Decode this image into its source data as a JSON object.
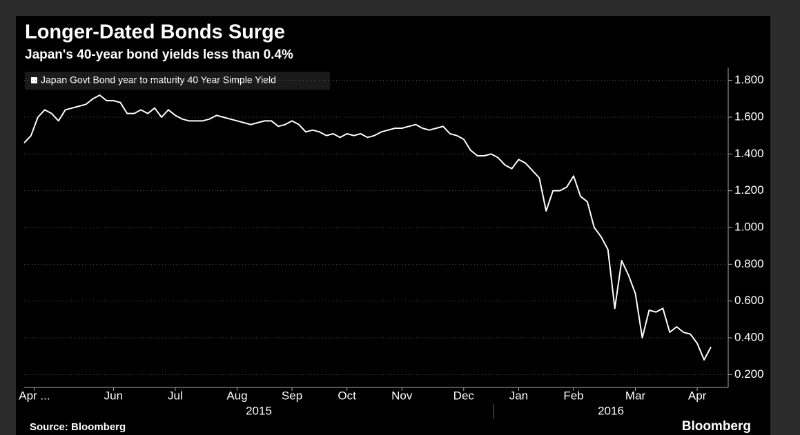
{
  "chart_data": {
    "type": "line",
    "title": "Longer-Dated Bonds Surge",
    "subtitle": "Japan's 40-year bond yields less than 0.4%",
    "source": "Source: Bloomberg",
    "brand": "Bloomberg",
    "years": [
      "2015",
      "2016"
    ],
    "xlim": [
      0,
      100
    ],
    "xticks": [
      {
        "value": 1.5,
        "label": "Apr ..."
      },
      {
        "value": 13,
        "label": "Jun"
      },
      {
        "value": 22,
        "label": "Jul"
      },
      {
        "value": 31,
        "label": "Aug"
      },
      {
        "value": 39,
        "label": "Sep"
      },
      {
        "value": 47,
        "label": "Oct"
      },
      {
        "value": 55,
        "label": "Nov"
      },
      {
        "value": 64,
        "label": "Dec"
      },
      {
        "value": 72,
        "label": "Jan"
      },
      {
        "value": 80,
        "label": "Feb"
      },
      {
        "value": 89,
        "label": "Mar"
      },
      {
        "value": 98,
        "label": "Apr"
      }
    ],
    "ylim": [
      0.13,
      1.87
    ],
    "yticks": [
      {
        "value": 0.2,
        "label": "0.200"
      },
      {
        "value": 0.4,
        "label": "0.400"
      },
      {
        "value": 0.6,
        "label": "0.600"
      },
      {
        "value": 0.8,
        "label": "0.800"
      },
      {
        "value": 1.0,
        "label": "1.000"
      },
      {
        "value": 1.2,
        "label": "1.200"
      },
      {
        "value": 1.4,
        "label": "1.400"
      },
      {
        "value": 1.6,
        "label": "1.600"
      },
      {
        "value": 1.8,
        "label": "1.800"
      }
    ],
    "series": [
      {
        "name": "Japan Govt Bond year to maturity 40 Year Simple Yield",
        "color": "#ffffff",
        "values": [
          1.46,
          1.5,
          1.6,
          1.64,
          1.62,
          1.58,
          1.64,
          1.65,
          1.66,
          1.67,
          1.7,
          1.72,
          1.69,
          1.69,
          1.68,
          1.62,
          1.62,
          1.64,
          1.62,
          1.65,
          1.6,
          1.64,
          1.61,
          1.59,
          1.58,
          1.58,
          1.58,
          1.59,
          1.61,
          1.6,
          1.59,
          1.58,
          1.57,
          1.56,
          1.57,
          1.58,
          1.58,
          1.55,
          1.56,
          1.58,
          1.56,
          1.52,
          1.53,
          1.52,
          1.5,
          1.51,
          1.49,
          1.51,
          1.5,
          1.51,
          1.49,
          1.5,
          1.52,
          1.53,
          1.54,
          1.54,
          1.55,
          1.56,
          1.54,
          1.53,
          1.54,
          1.55,
          1.51,
          1.5,
          1.48,
          1.42,
          1.39,
          1.39,
          1.4,
          1.38,
          1.34,
          1.32,
          1.37,
          1.35,
          1.31,
          1.27,
          1.09,
          1.2,
          1.2,
          1.22,
          1.28,
          1.17,
          1.14,
          1.0,
          0.95,
          0.88,
          0.56,
          0.82,
          0.74,
          0.64,
          0.4,
          0.55,
          0.54,
          0.56,
          0.43,
          0.46,
          0.43,
          0.42,
          0.37,
          0.28,
          0.35
        ]
      }
    ]
  }
}
